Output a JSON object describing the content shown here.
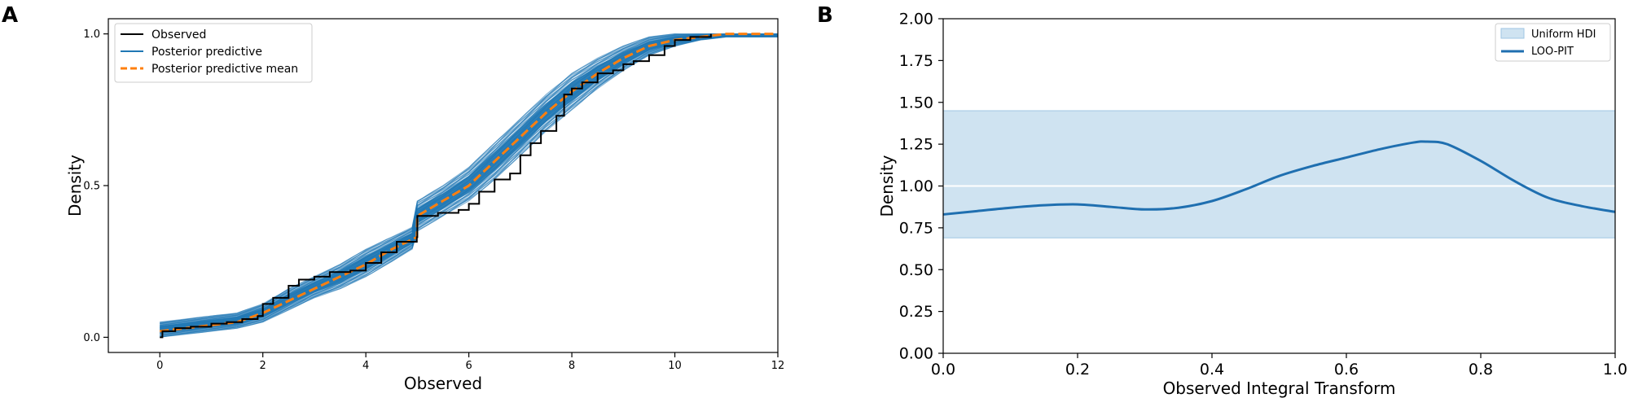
{
  "chart_data": [
    {
      "panel_label": "A",
      "type": "line",
      "xlabel": "Observed",
      "ylabel": "Density",
      "xlim": [
        -1,
        12
      ],
      "ylim": [
        -0.05,
        1.05
      ],
      "x_ticks": [
        0,
        2,
        4,
        6,
        8,
        10,
        12
      ],
      "y_ticks": [
        0.0,
        0.5,
        1.0
      ],
      "x_tick_labels": [
        "0",
        "2",
        "4",
        "6",
        "8",
        "10",
        "12"
      ],
      "y_tick_labels": [
        "0.0",
        "0.5",
        "1.0"
      ],
      "legend_position": "top-left",
      "legend": [
        "Observed",
        "Posterior predictive",
        "Posterior predictive mean"
      ],
      "series": [
        {
          "name": "Observed",
          "color": "#000000",
          "style": "step",
          "x": [
            0,
            0.05,
            0.3,
            0.6,
            1.0,
            1.3,
            1.6,
            1.9,
            2.0,
            2.2,
            2.5,
            2.7,
            3.0,
            3.3,
            3.7,
            4.0,
            4.3,
            4.6,
            4.99,
            5.0,
            5.4,
            5.8,
            6.0,
            6.2,
            6.5,
            6.8,
            7.0,
            7.2,
            7.4,
            7.7,
            7.85,
            8.0,
            8.2,
            8.5,
            8.8,
            9.0,
            9.2,
            9.5,
            9.8,
            10.0,
            10.3,
            10.7
          ],
          "y": [
            0.0,
            0.02,
            0.03,
            0.035,
            0.045,
            0.05,
            0.06,
            0.07,
            0.11,
            0.13,
            0.17,
            0.19,
            0.2,
            0.215,
            0.22,
            0.245,
            0.28,
            0.315,
            0.33,
            0.4,
            0.41,
            0.42,
            0.44,
            0.48,
            0.52,
            0.54,
            0.6,
            0.64,
            0.68,
            0.73,
            0.8,
            0.82,
            0.84,
            0.87,
            0.88,
            0.9,
            0.91,
            0.93,
            0.96,
            0.98,
            0.99,
            1.0
          ]
        },
        {
          "name": "Posterior predictive",
          "color": "#1f77b4",
          "style": "band",
          "x": [
            0,
            0.5,
            1,
            1.5,
            2,
            2.5,
            3,
            3.5,
            4,
            4.5,
            4.99,
            5.0,
            5.5,
            6,
            6.5,
            7,
            7.5,
            8,
            8.5,
            9,
            9.5,
            10,
            10.5,
            11,
            11.5,
            12
          ],
          "lower": [
            0.0,
            0.01,
            0.02,
            0.03,
            0.05,
            0.09,
            0.13,
            0.16,
            0.2,
            0.25,
            0.3,
            0.35,
            0.4,
            0.45,
            0.52,
            0.6,
            0.68,
            0.75,
            0.82,
            0.88,
            0.93,
            0.96,
            0.98,
            0.99,
            0.99,
            0.99
          ],
          "upper": [
            0.05,
            0.06,
            0.07,
            0.08,
            0.11,
            0.16,
            0.2,
            0.24,
            0.29,
            0.33,
            0.37,
            0.45,
            0.5,
            0.56,
            0.64,
            0.72,
            0.8,
            0.87,
            0.92,
            0.96,
            0.99,
            1.0,
            1.0,
            1.0,
            1.0,
            1.0
          ]
        },
        {
          "name": "Posterior predictive mean",
          "color": "#ff7f0e",
          "style": "dashed",
          "x": [
            0,
            0.5,
            1,
            1.5,
            2,
            2.5,
            3,
            3.5,
            4,
            4.5,
            4.99,
            5.0,
            5.5,
            6,
            6.5,
            7,
            7.5,
            8,
            8.5,
            9,
            9.5,
            10,
            10.5,
            11,
            11.5,
            12
          ],
          "y": [
            0.02,
            0.03,
            0.04,
            0.05,
            0.08,
            0.12,
            0.16,
            0.2,
            0.24,
            0.29,
            0.33,
            0.4,
            0.45,
            0.5,
            0.58,
            0.66,
            0.74,
            0.81,
            0.87,
            0.92,
            0.96,
            0.98,
            0.99,
            1.0,
            1.0,
            1.0
          ]
        }
      ]
    },
    {
      "panel_label": "B",
      "type": "line",
      "xlabel": "Observed Integral Transform",
      "ylabel": "Density",
      "xlim": [
        0.0,
        1.0
      ],
      "ylim": [
        0.0,
        2.0
      ],
      "x_ticks": [
        0.0,
        0.2,
        0.4,
        0.6,
        0.8,
        1.0
      ],
      "y_ticks": [
        0.0,
        0.25,
        0.5,
        0.75,
        1.0,
        1.25,
        1.5,
        1.75,
        2.0
      ],
      "x_tick_labels": [
        "0.0",
        "0.2",
        "0.4",
        "0.6",
        "0.8",
        "1.0"
      ],
      "y_tick_labels": [
        "0.00",
        "0.25",
        "0.50",
        "0.75",
        "1.00",
        "1.25",
        "1.50",
        "1.75",
        "2.00"
      ],
      "legend_position": "top-right",
      "legend": [
        "Uniform HDI",
        "LOO-PIT"
      ],
      "hdi": {
        "name": "Uniform HDI",
        "lower": 0.69,
        "upper": 1.45,
        "color": "#cfe3f1"
      },
      "reference_line": 1.0,
      "series": [
        {
          "name": "LOO-PIT",
          "color": "#1f6fb0",
          "x": [
            0.0,
            0.05,
            0.1,
            0.15,
            0.2,
            0.25,
            0.3,
            0.35,
            0.4,
            0.45,
            0.5,
            0.55,
            0.6,
            0.65,
            0.7,
            0.72,
            0.75,
            0.8,
            0.85,
            0.9,
            0.95,
            1.0
          ],
          "y": [
            0.83,
            0.85,
            0.87,
            0.885,
            0.89,
            0.875,
            0.86,
            0.87,
            0.91,
            0.98,
            1.06,
            1.12,
            1.17,
            1.22,
            1.26,
            1.265,
            1.25,
            1.15,
            1.03,
            0.93,
            0.88,
            0.845
          ]
        }
      ]
    }
  ]
}
